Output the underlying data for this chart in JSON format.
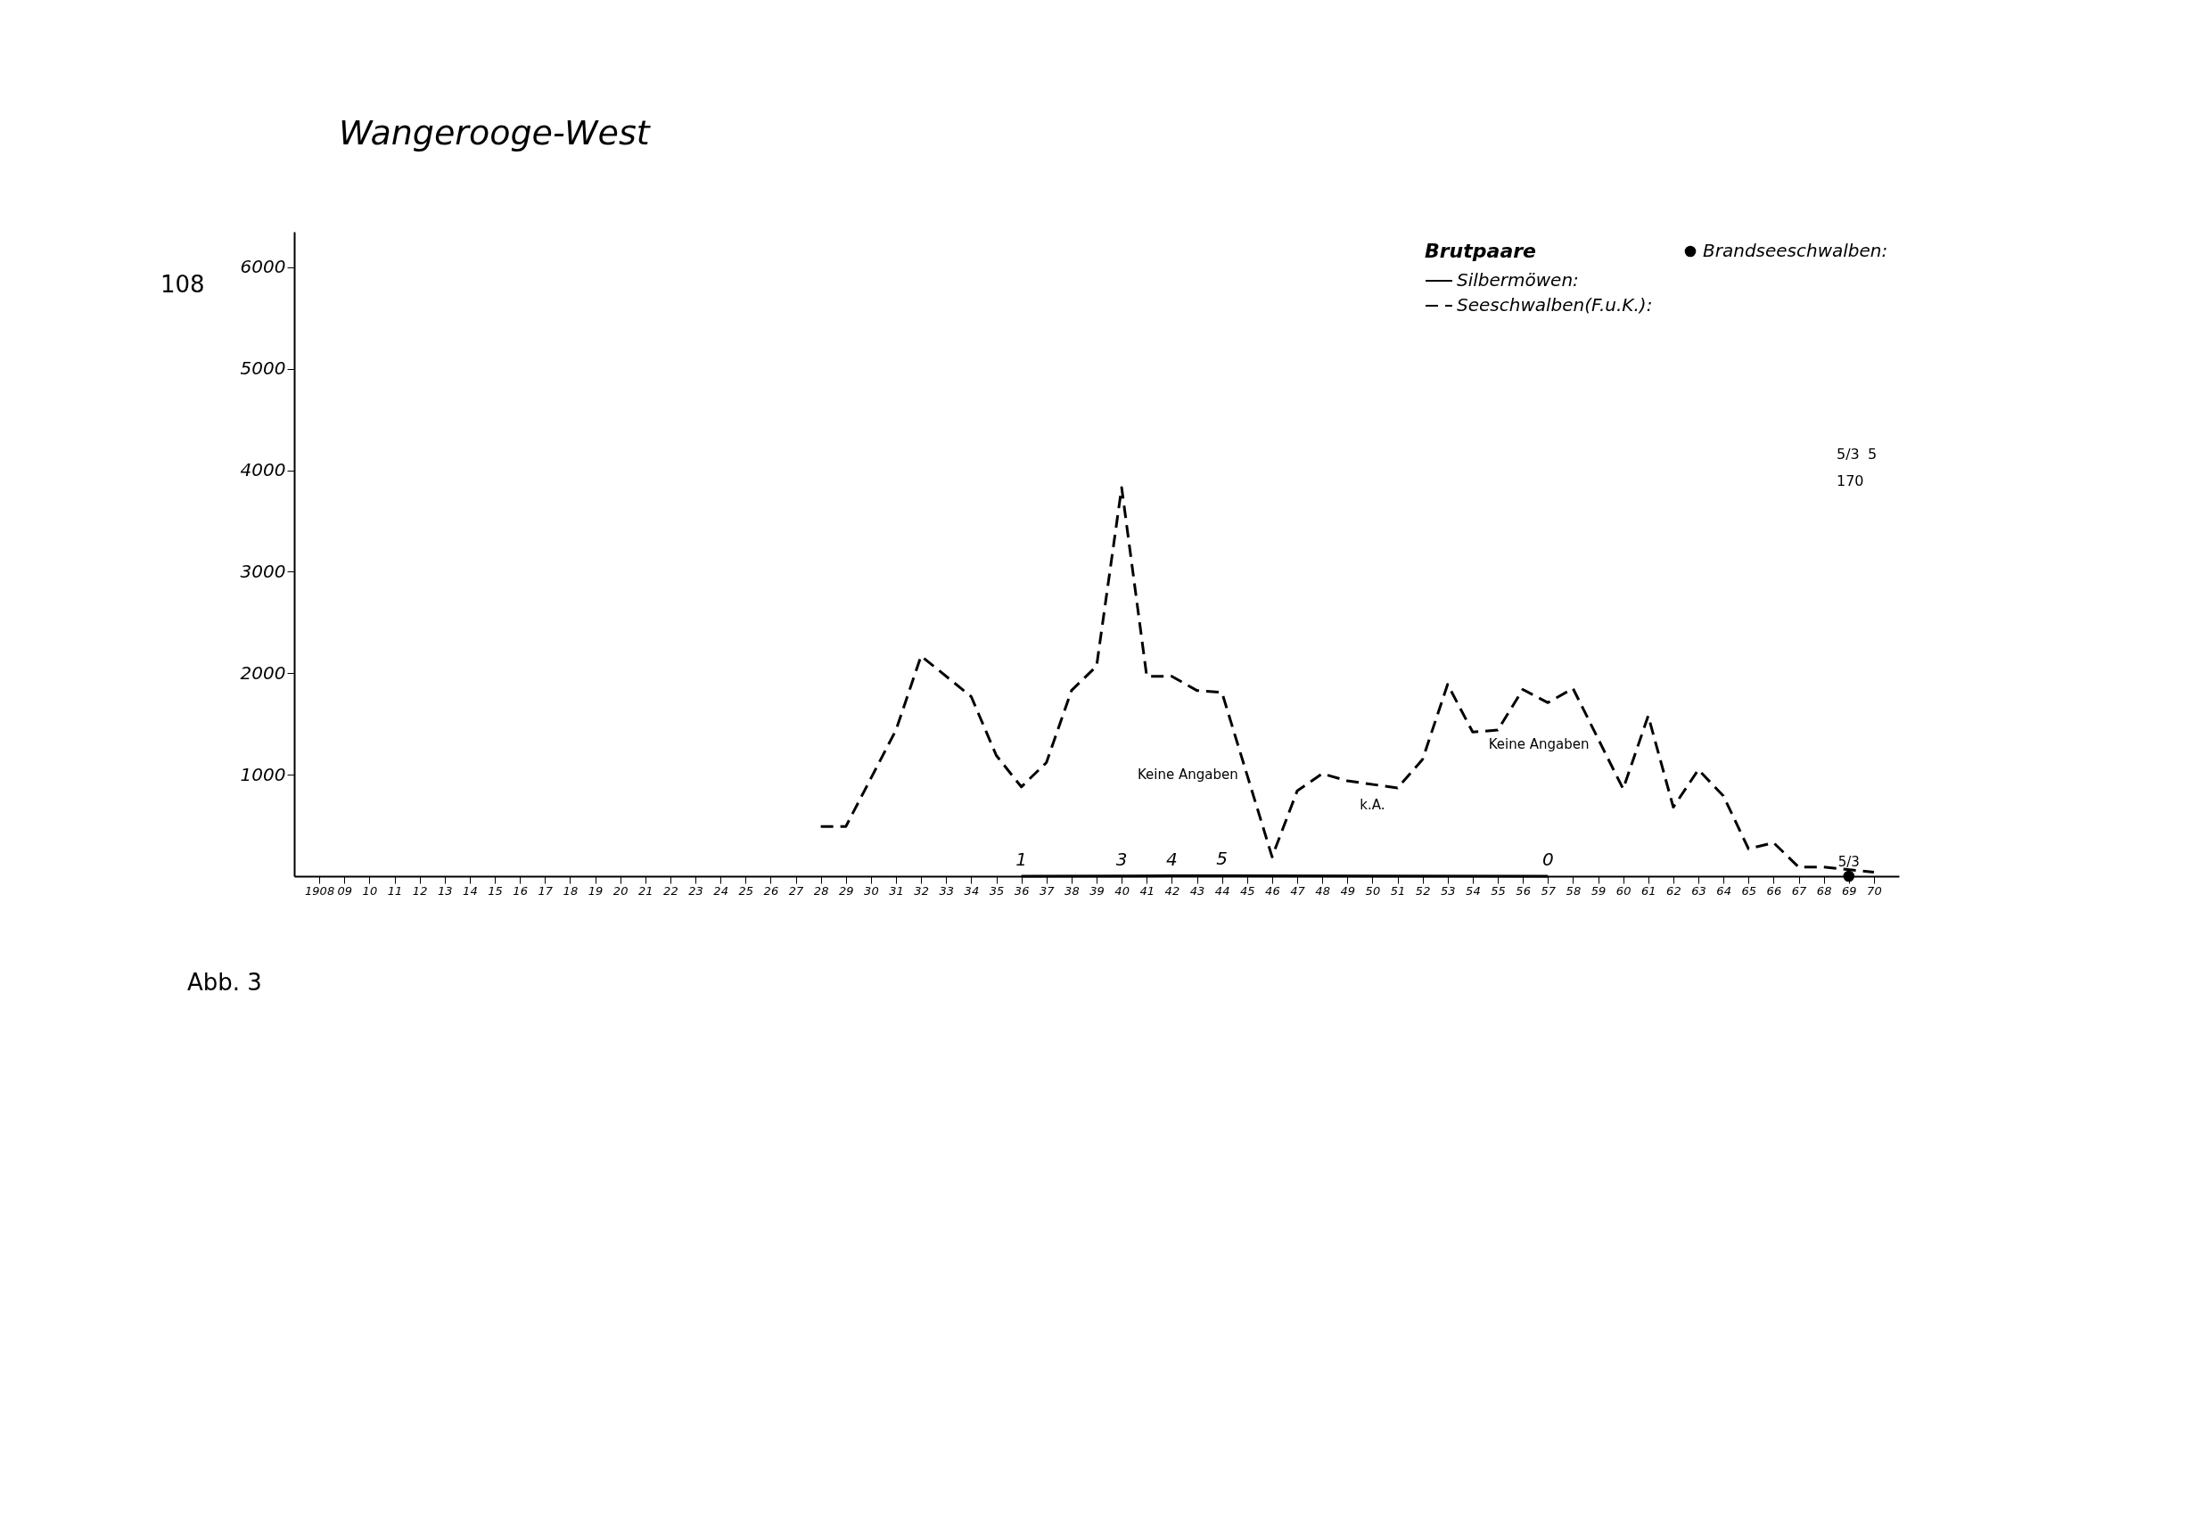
{
  "chart_data": {
    "type": "line",
    "title": "Wangerooge-West",
    "legend_title": "Brutpaare",
    "legend": "top right",
    "grid": false,
    "marker": "none",
    "xlim": [
      1907,
      1971
    ],
    "xticks": [
      {
        "value": 1908,
        "label": "1908"
      },
      {
        "value": 1909,
        "label": "09"
      },
      {
        "value": 1910,
        "label": "10"
      },
      {
        "value": 1911,
        "label": "11"
      },
      {
        "value": 1912,
        "label": "12"
      },
      {
        "value": 1913,
        "label": "13"
      },
      {
        "value": 1914,
        "label": "14"
      },
      {
        "value": 1915,
        "label": "15"
      },
      {
        "value": 1916,
        "label": "16"
      },
      {
        "value": 1917,
        "label": "17"
      },
      {
        "value": 1918,
        "label": "18"
      },
      {
        "value": 1919,
        "label": "19"
      },
      {
        "value": 1920,
        "label": "20"
      },
      {
        "value": 1921,
        "label": "21"
      },
      {
        "value": 1922,
        "label": "22"
      },
      {
        "value": 1923,
        "label": "23"
      },
      {
        "value": 1924,
        "label": "24"
      },
      {
        "value": 1925,
        "label": "25"
      },
      {
        "value": 1926,
        "label": "26"
      },
      {
        "value": 1927,
        "label": "27"
      },
      {
        "value": 1928,
        "label": "28"
      },
      {
        "value": 1929,
        "label": "29"
      },
      {
        "value": 1930,
        "label": "30"
      },
      {
        "value": 1931,
        "label": "31"
      },
      {
        "value": 1932,
        "label": "32"
      },
      {
        "value": 1933,
        "label": "33"
      },
      {
        "value": 1934,
        "label": "34"
      },
      {
        "value": 1935,
        "label": "35"
      },
      {
        "value": 1936,
        "label": "36"
      },
      {
        "value": 1937,
        "label": "37"
      },
      {
        "value": 1938,
        "label": "38"
      },
      {
        "value": 1939,
        "label": "39"
      },
      {
        "value": 1940,
        "label": "40"
      },
      {
        "value": 1941,
        "label": "41"
      },
      {
        "value": 1942,
        "label": "42"
      },
      {
        "value": 1943,
        "label": "43"
      },
      {
        "value": 1944,
        "label": "44"
      },
      {
        "value": 1945,
        "label": "45"
      },
      {
        "value": 1946,
        "label": "46"
      },
      {
        "value": 1947,
        "label": "47"
      },
      {
        "value": 1948,
        "label": "48"
      },
      {
        "value": 1949,
        "label": "49"
      },
      {
        "value": 1950,
        "label": "50"
      },
      {
        "value": 1951,
        "label": "51"
      },
      {
        "value": 1952,
        "label": "52"
      },
      {
        "value": 1953,
        "label": "53"
      },
      {
        "value": 1954,
        "label": "54"
      },
      {
        "value": 1955,
        "label": "55"
      },
      {
        "value": 1956,
        "label": "56"
      },
      {
        "value": 1957,
        "label": "57"
      },
      {
        "value": 1958,
        "label": "58"
      },
      {
        "value": 1959,
        "label": "59"
      },
      {
        "value": 1960,
        "label": "60"
      },
      {
        "value": 1961,
        "label": "61"
      },
      {
        "value": 1962,
        "label": "62"
      },
      {
        "value": 1963,
        "label": "63"
      },
      {
        "value": 1964,
        "label": "64"
      },
      {
        "value": 1965,
        "label": "65"
      },
      {
        "value": 1966,
        "label": "66"
      },
      {
        "value": 1967,
        "label": "67"
      },
      {
        "value": 1968,
        "label": "68"
      },
      {
        "value": 1969,
        "label": "69"
      },
      {
        "value": 1970,
        "label": "70"
      }
    ],
    "ylim": [
      0,
      6350
    ],
    "yticks": [
      1000,
      2000,
      3000,
      4000,
      5000,
      6000
    ],
    "series": [
      {
        "name": "Silbermöwen:",
        "color": "#000000",
        "line_style": "solid",
        "x": [
          1936,
          1940,
          1942,
          1944,
          1957
        ],
        "values": [
          1,
          3,
          4,
          5,
          0
        ],
        "value_labels": [
          "1",
          "3",
          "4",
          "5",
          "0"
        ]
      },
      {
        "name": "Seeschwalben(F.u.K.):",
        "color": "#000000",
        "line_style": "dashed",
        "x": [
          1928,
          1929,
          1931,
          1932,
          1934,
          1935,
          1936,
          1937,
          1938,
          1939,
          1940,
          1941,
          1942,
          1943,
          1944,
          1946,
          1947,
          1948,
          1949,
          1951,
          1952,
          1953,
          1954,
          1955,
          1956,
          1957,
          1958,
          1960,
          1961,
          1962,
          1963,
          1964,
          1965,
          1966,
          1967,
          1968,
          1970
        ],
        "values": [
          490,
          490,
          1440,
          2170,
          1770,
          1190,
          880,
          1120,
          1830,
          2070,
          3830,
          1970,
          1970,
          1830,
          1810,
          190,
          840,
          1010,
          940,
          870,
          1150,
          1890,
          1420,
          1440,
          1840,
          1710,
          1850,
          860,
          1580,
          680,
          1050,
          790,
          270,
          330,
          90,
          90,
          40
        ]
      },
      {
        "name": "Brandseeschwalben:",
        "type": "scatter",
        "color": "#000000",
        "marker": "circle",
        "x": [
          1969
        ],
        "values": [
          0
        ]
      }
    ],
    "annotations": [
      "Abb. 3",
      "108",
      "5/3",
      "5",
      "170",
      {
        "text": "Keine Angaben",
        "x": 1945,
        "y": 1000
      },
      {
        "text": "k.A.",
        "x": 1950,
        "y": 900
      },
      {
        "text": "Keine Angaben",
        "x": 1959,
        "y": 1300
      },
      {
        "text": "5/3",
        "x": 1969,
        "y": 0
      }
    ]
  }
}
